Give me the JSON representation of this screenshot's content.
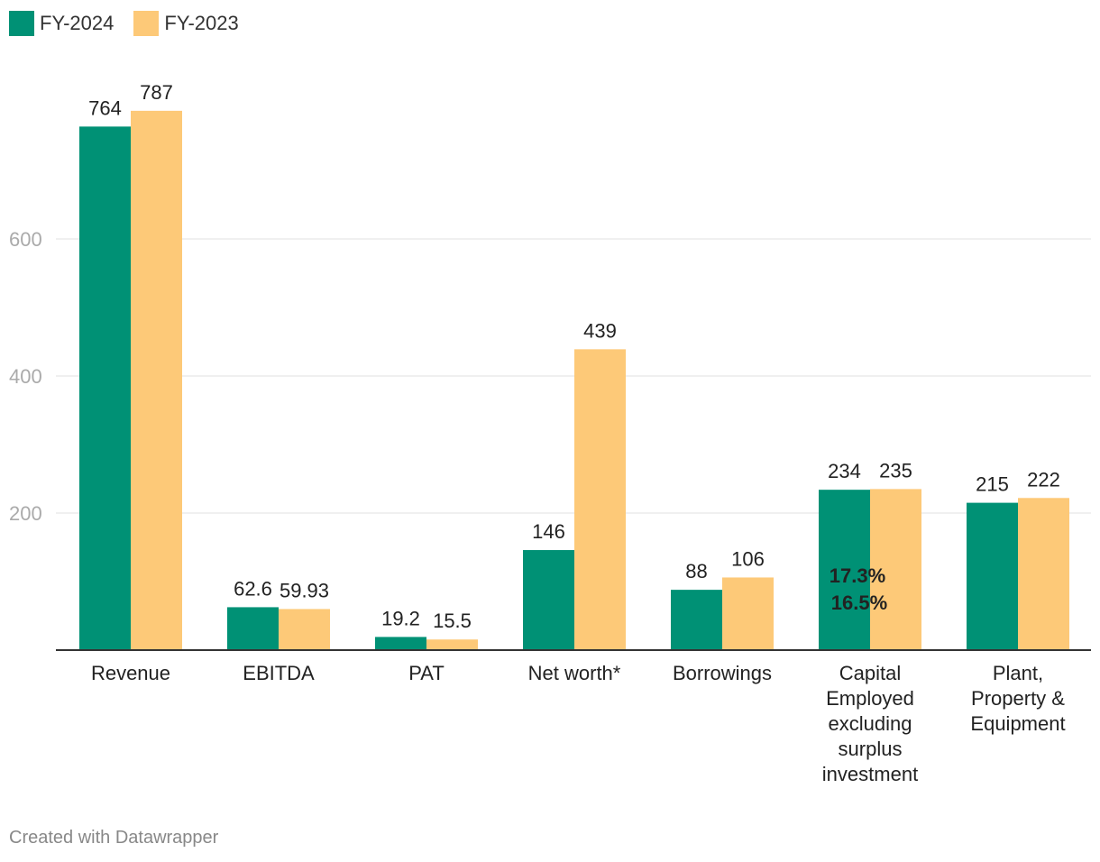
{
  "colors": {
    "fy2024": "#009175",
    "fy2023": "#fdc978",
    "grid": "#e2e2e2",
    "axis": "#333333",
    "tick": "#aaaaaa"
  },
  "legend": [
    {
      "label": "FY-2024",
      "color": "#009175"
    },
    {
      "label": "FY-2023",
      "color": "#fdc978"
    }
  ],
  "footer": "Created with Datawrapper",
  "chart_data": {
    "type": "bar",
    "title": "",
    "xlabel": "",
    "ylabel": "",
    "ylim": [
      0,
      787
    ],
    "yticks": [
      200,
      400,
      600
    ],
    "categories": [
      [
        "Revenue"
      ],
      [
        "EBITDA"
      ],
      [
        "PAT"
      ],
      [
        "Net worth*"
      ],
      [
        "Borrowings"
      ],
      [
        "Capital",
        "Employed",
        "excluding",
        "surplus",
        "investment"
      ],
      [
        "Plant,",
        "Property &",
        "Equipment"
      ]
    ],
    "series": [
      {
        "name": "FY-2024",
        "values": [
          764,
          62.6,
          19.2,
          146,
          88,
          234,
          215
        ],
        "labels": [
          "764",
          "62.6",
          "19.2",
          "146",
          "88",
          "234",
          "215"
        ]
      },
      {
        "name": "FY-2023",
        "values": [
          787,
          59.93,
          15.5,
          439,
          106,
          235,
          222
        ],
        "labels": [
          "787",
          "59.93",
          "15.5",
          "439",
          "106",
          "235",
          "222"
        ]
      }
    ],
    "annotations": [
      {
        "category_index": 5,
        "text": "17.3%"
      },
      {
        "category_index": 5,
        "text": "16.5%"
      }
    ]
  }
}
